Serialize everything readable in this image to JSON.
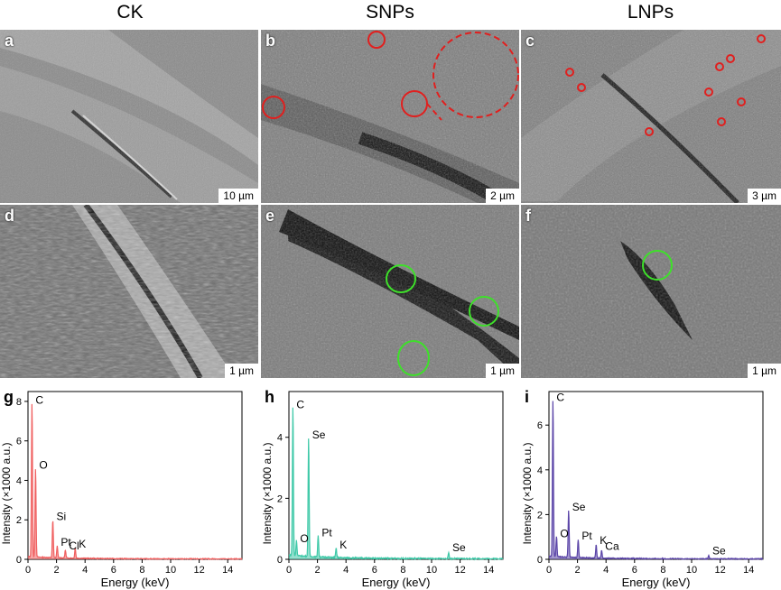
{
  "columns": [
    "CK",
    "SNPs",
    "LNPs"
  ],
  "sem_panels": [
    {
      "label": "a",
      "scale": "10 µm"
    },
    {
      "label": "b",
      "scale": "2 µm"
    },
    {
      "label": "c",
      "scale": "3 µm"
    },
    {
      "label": "d",
      "scale": "1 µm"
    },
    {
      "label": "e",
      "scale": "1 µm"
    },
    {
      "label": "f",
      "scale": "1 µm"
    }
  ],
  "colors": {
    "red_marker": "#e0201f",
    "green_marker": "#3ee02a"
  },
  "chart_data": [
    {
      "type": "line",
      "panel": "g",
      "color": "#f06060",
      "xlabel": "Energy (keV)",
      "ylabel": "Intensity (×1000 a.u.)",
      "xlim": [
        0,
        15
      ],
      "ylim": [
        0,
        8.5
      ],
      "xticks": [
        0,
        2,
        4,
        6,
        8,
        10,
        12,
        14
      ],
      "yticks": [
        0,
        2,
        4,
        6,
        8
      ],
      "peaks": [
        {
          "x": 0.28,
          "y": 7.8,
          "label": "C"
        },
        {
          "x": 0.53,
          "y": 4.5,
          "label": "O"
        },
        {
          "x": 1.74,
          "y": 1.9,
          "label": "Si"
        },
        {
          "x": 2.05,
          "y": 0.6,
          "label": "Pt"
        },
        {
          "x": 2.62,
          "y": 0.4,
          "label": "Cl"
        },
        {
          "x": 3.31,
          "y": 0.5,
          "label": "K"
        }
      ]
    },
    {
      "type": "line",
      "panel": "h",
      "color": "#3fc9a8",
      "xlabel": "Energy (keV)",
      "ylabel": "Intensity (×1000 a.u.)",
      "xlim": [
        0,
        15
      ],
      "ylim": [
        0,
        5.5
      ],
      "xticks": [
        0,
        2,
        4,
        6,
        8,
        10,
        12,
        14
      ],
      "yticks": [
        0,
        2,
        4
      ],
      "peaks": [
        {
          "x": 0.28,
          "y": 4.9,
          "label": "C"
        },
        {
          "x": 0.53,
          "y": 0.5,
          "label": "O"
        },
        {
          "x": 1.38,
          "y": 3.9,
          "label": "Se"
        },
        {
          "x": 2.05,
          "y": 0.7,
          "label": "Pt"
        },
        {
          "x": 3.31,
          "y": 0.3,
          "label": "K"
        },
        {
          "x": 11.2,
          "y": 0.2,
          "label": "Se"
        }
      ]
    },
    {
      "type": "line",
      "panel": "i",
      "color": "#5b45a8",
      "xlabel": "Energy (keV)",
      "ylabel": "Intensity (×1000 a.u.)",
      "xlim": [
        0,
        15
      ],
      "ylim": [
        0,
        7.5
      ],
      "xticks": [
        0,
        2,
        4,
        6,
        8,
        10,
        12,
        14
      ],
      "yticks": [
        0,
        2,
        4,
        6
      ],
      "peaks": [
        {
          "x": 0.28,
          "y": 7.0,
          "label": "C"
        },
        {
          "x": 0.53,
          "y": 0.9,
          "label": "O"
        },
        {
          "x": 1.38,
          "y": 2.1,
          "label": "Se"
        },
        {
          "x": 2.05,
          "y": 0.8,
          "label": "Pt"
        },
        {
          "x": 3.31,
          "y": 0.6,
          "label": "K"
        },
        {
          "x": 3.69,
          "y": 0.35,
          "label": "Ca"
        },
        {
          "x": 11.2,
          "y": 0.15,
          "label": "Se"
        }
      ]
    }
  ]
}
